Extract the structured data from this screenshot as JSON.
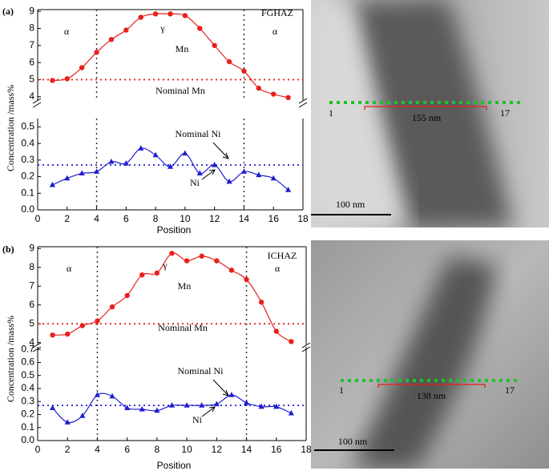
{
  "chart_data": [
    {
      "type": "line",
      "x": [
        1,
        2,
        3,
        4,
        5,
        6,
        7,
        8,
        9,
        10,
        11,
        12,
        13,
        14,
        15,
        16,
        17
      ],
      "series": [
        {
          "name": "Mn",
          "color": "#e8201c",
          "marker": "circle",
          "values": [
            4.95,
            5.05,
            5.7,
            6.6,
            7.35,
            7.9,
            8.65,
            8.85,
            8.85,
            8.75,
            8.0,
            7.0,
            6.05,
            5.5,
            4.5,
            4.15,
            3.95
          ]
        }
      ],
      "xlim": [
        0,
        18
      ],
      "ylim": [
        3.8,
        9.1
      ],
      "yticks": [
        4,
        5,
        6,
        7,
        8,
        9
      ],
      "reference": 5,
      "reference_color": "#e8201c",
      "vlines": [
        4,
        14
      ],
      "annotations": [
        "α",
        "γ",
        "α",
        "Mn",
        "Nominal Mn"
      ]
    },
    {
      "type": "line",
      "x": [
        1,
        2,
        3,
        4,
        5,
        6,
        7,
        8,
        9,
        10,
        11,
        12,
        13,
        14,
        15,
        16,
        17
      ],
      "series": [
        {
          "name": "Ni",
          "color": "#1f1fd0",
          "marker": "triangle",
          "values": [
            0.15,
            0.19,
            0.22,
            0.23,
            0.29,
            0.28,
            0.37,
            0.33,
            0.26,
            0.34,
            0.22,
            0.27,
            0.17,
            0.23,
            0.21,
            0.19,
            0.12
          ]
        }
      ],
      "xlim": [
        0,
        18
      ],
      "xticks": [
        0,
        2,
        4,
        6,
        8,
        10,
        12,
        14,
        16,
        18
      ],
      "ylim": [
        0,
        0.55
      ],
      "yticks": [
        {
          "value": 0,
          "label": "0.0"
        },
        0.1,
        0.2,
        0.3,
        0.4,
        0.5
      ],
      "reference": 0.27,
      "reference_color": "#1f1fd0",
      "vlines": [
        4,
        14
      ],
      "annotations": [
        "Nominal Ni",
        "Ni"
      ]
    },
    {
      "type": "line",
      "x": [
        1,
        2,
        3,
        4,
        5,
        6,
        7,
        8,
        9,
        10,
        11,
        12,
        13,
        14,
        15,
        16,
        17
      ],
      "series": [
        {
          "name": "Mn",
          "color": "#e8201c",
          "marker": "circle",
          "values": [
            4.4,
            4.45,
            4.9,
            5.15,
            5.9,
            6.5,
            7.6,
            7.7,
            8.75,
            8.35,
            8.6,
            8.35,
            7.85,
            7.35,
            6.15,
            4.6,
            4.05
          ]
        }
      ],
      "xlim": [
        0,
        18
      ],
      "ylim": [
        3.9,
        9.1
      ],
      "yticks": [
        4,
        5,
        6,
        7,
        8,
        9
      ],
      "reference": 5,
      "reference_color": "#e8201c",
      "vlines": [
        4,
        14
      ],
      "annotations": [
        "α",
        "γ",
        "α",
        "Mn",
        "Nominal Mn"
      ]
    },
    {
      "type": "line",
      "x": [
        1,
        2,
        3,
        4,
        5,
        6,
        7,
        8,
        9,
        10,
        11,
        12,
        13,
        14,
        15,
        16,
        17
      ],
      "series": [
        {
          "name": "Ni",
          "color": "#1f1fd0",
          "marker": "triangle",
          "values": [
            0.25,
            0.14,
            0.19,
            0.35,
            0.34,
            0.25,
            0.24,
            0.23,
            0.27,
            0.27,
            0.27,
            0.28,
            0.35,
            0.29,
            0.26,
            0.26,
            0.21
          ]
        }
      ],
      "xlim": [
        0,
        18
      ],
      "xticks": [
        0,
        2,
        4,
        6,
        8,
        10,
        12,
        14,
        16,
        18
      ],
      "ylim": [
        0,
        0.72
      ],
      "yticks": [
        {
          "value": 0,
          "label": "0.0"
        },
        0.1,
        0.2,
        0.3,
        0.4,
        0.5,
        0.6,
        0.7
      ],
      "reference": 0.27,
      "reference_color": "#1f1fd0",
      "vlines": [
        4,
        14
      ],
      "annotations": [
        "Nominal Ni",
        "Ni"
      ]
    }
  ],
  "panels": [
    {
      "label": "(a)",
      "condition": "FGHAZ",
      "xlabel": "Position",
      "ylabel": "Concentration /mass%",
      "image": {
        "start": "1",
        "end": "17",
        "length": "155 nm",
        "scale": "100 nm"
      }
    },
    {
      "label": "(b)",
      "condition": "ICHAZ",
      "xlabel": "Position",
      "ylabel": "Concentration /mass%",
      "image": {
        "start": "1",
        "end": "17",
        "length": "138 nm",
        "scale": "100 nm"
      }
    }
  ]
}
